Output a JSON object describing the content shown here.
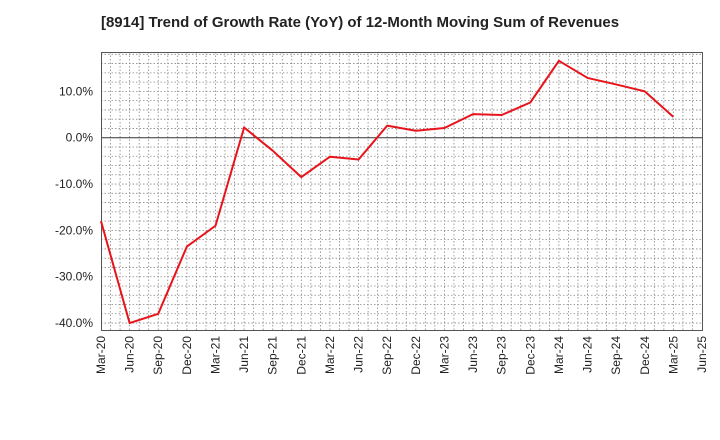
{
  "chart_data": {
    "type": "line",
    "title": "[8914]  Trend of Growth Rate (YoY) of 12-Month Moving Sum of Revenues",
    "xlabel": "",
    "ylabel": "",
    "x_ticks": [
      "Mar-20",
      "Jun-20",
      "Sep-20",
      "Dec-20",
      "Mar-21",
      "Jun-21",
      "Sep-21",
      "Dec-21",
      "Mar-22",
      "Jun-22",
      "Sep-22",
      "Dec-22",
      "Mar-23",
      "Jun-23",
      "Sep-23",
      "Dec-23",
      "Mar-24",
      "Jun-24",
      "Sep-24",
      "Dec-24",
      "Mar-25",
      "Jun-25"
    ],
    "y_ticks": [
      10,
      0,
      -10,
      -20,
      -30,
      -40
    ],
    "y_tick_labels": [
      "10.0%",
      "0.0%",
      "-10.0%",
      "-20.0%",
      "-30.0%",
      "-40.0%"
    ],
    "ylim": [
      -41.5,
      18.5
    ],
    "grid": true,
    "series": [
      {
        "color": "#e8141b",
        "x": [
          "Mar-20",
          "Jun-20",
          "Sep-20",
          "Dec-20",
          "Mar-21",
          "Jun-21",
          "Sep-21",
          "Dec-21",
          "Mar-22",
          "Jun-22",
          "Sep-22",
          "Dec-22",
          "Mar-23",
          "Jun-23",
          "Sep-23",
          "Dec-23",
          "Mar-24",
          "Jun-24",
          "Sep-24",
          "Dec-24",
          "Mar-25"
        ],
        "values": [
          -18.0,
          -40.0,
          -38.0,
          -23.5,
          -19.0,
          2.2,
          -2.8,
          -8.5,
          -4.1,
          -4.7,
          2.6,
          1.5,
          2.1,
          5.1,
          4.9,
          7.6,
          16.6,
          12.9,
          11.5,
          10.0,
          4.5
        ]
      }
    ]
  }
}
